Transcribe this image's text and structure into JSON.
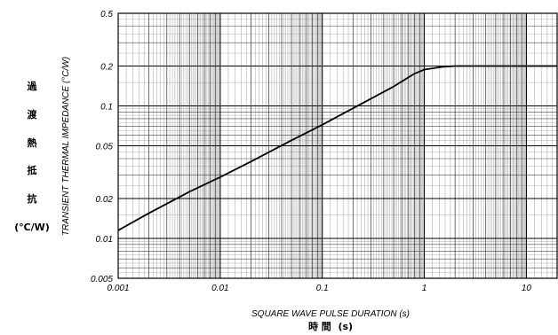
{
  "chart_data": {
    "type": "line",
    "x_scale": "log",
    "y_scale": "log",
    "xlim": [
      0.001,
      20
    ],
    "ylim": [
      0.005,
      0.5
    ],
    "grid": true,
    "x_tick_labels": [
      "0.001",
      "0.01",
      "0.1",
      "1",
      "10"
    ],
    "y_tick_labels": [
      "0.005",
      "0.01",
      "0.02",
      "0.05",
      "0.1",
      "0.2",
      "0.5"
    ],
    "xlabel": "SQUARE WAVE PULSE DURATION (s)",
    "xlabel_jp": "時 間  (s)",
    "ylabel": "TRANSIENT THERMAL IMPEDANCE (°C/W)",
    "ylabel_jp": [
      "過",
      "渡",
      "熱",
      "抵",
      "抗"
    ],
    "ylabel_jp_unit": "(℃/W)",
    "series": [
      {
        "color": "#000000",
        "x": [
          0.001,
          0.002,
          0.005,
          0.01,
          0.02,
          0.05,
          0.1,
          0.2,
          0.5,
          0.8,
          1.0,
          1.5,
          2.0,
          3.0,
          5.0,
          10.0,
          20.0
        ],
        "y": [
          0.0115,
          0.0155,
          0.0225,
          0.029,
          0.038,
          0.055,
          0.072,
          0.096,
          0.14,
          0.175,
          0.188,
          0.197,
          0.2,
          0.2,
          0.2,
          0.2,
          0.2
        ]
      }
    ]
  }
}
